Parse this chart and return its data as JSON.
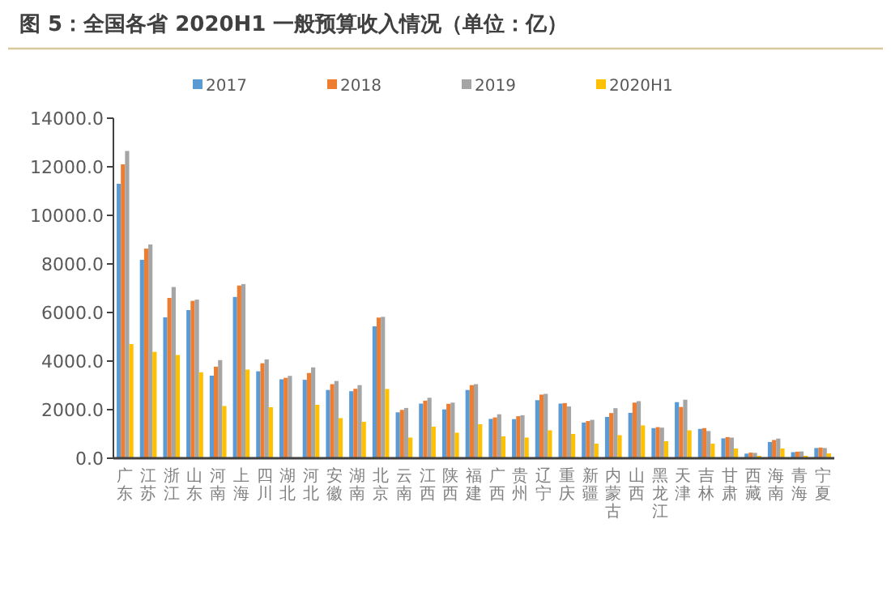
{
  "chart_data": {
    "type": "bar",
    "title": "图 5：全国各省 2020H1 一般预算收入情况（单位：亿）",
    "categories": [
      "广东",
      "江苏",
      "浙江",
      "山东",
      "河南",
      "上海",
      "四川",
      "湖北",
      "河北",
      "安徽",
      "湖南",
      "北京",
      "云南",
      "江西",
      "陕西",
      "福建",
      "广西",
      "贵州",
      "辽宁",
      "重庆",
      "新疆",
      "内蒙古",
      "山西",
      "黑龙江",
      "天津",
      "吉林",
      "甘肃",
      "西藏",
      "海南",
      "青海",
      "宁夏"
    ],
    "series": [
      {
        "name": "2017",
        "color": "#5b9bd5",
        "values": [
          11300,
          8170,
          5800,
          6100,
          3400,
          6640,
          3580,
          3250,
          3230,
          2810,
          2760,
          5430,
          1890,
          2250,
          2010,
          2810,
          1620,
          1610,
          2390,
          2250,
          1470,
          1700,
          1870,
          1240,
          2310,
          1210,
          820,
          190,
          670,
          250,
          420
        ]
      },
      {
        "name": "2018",
        "color": "#ed7d31",
        "values": [
          12100,
          8630,
          6600,
          6480,
          3770,
          7110,
          3910,
          3310,
          3510,
          3050,
          2860,
          5790,
          1990,
          2370,
          2240,
          3010,
          1680,
          1730,
          2620,
          2270,
          1530,
          1860,
          2290,
          1280,
          2110,
          1240,
          870,
          230,
          750,
          270,
          440
        ]
      },
      {
        "name": "2019",
        "color": "#a5a5a5",
        "values": [
          12650,
          8800,
          7050,
          6530,
          4040,
          7170,
          4070,
          3390,
          3740,
          3180,
          3010,
          5820,
          2070,
          2490,
          2290,
          3050,
          1810,
          1770,
          2650,
          2130,
          1580,
          2060,
          2350,
          1260,
          2410,
          1120,
          850,
          220,
          810,
          280,
          420
        ]
      },
      {
        "name": "2020H1",
        "color": "#ffc000",
        "values": [
          4700,
          4380,
          4250,
          3540,
          2150,
          3650,
          2100,
          null,
          2200,
          1650,
          1500,
          2850,
          850,
          1300,
          1050,
          1400,
          900,
          850,
          1150,
          1000,
          600,
          950,
          1350,
          700,
          1150,
          600,
          400,
          100,
          400,
          100,
          200
        ]
      }
    ],
    "ylim": [
      0,
      14000
    ],
    "yticks": [
      {
        "value": 0,
        "label": "0.0"
      },
      {
        "value": 2000,
        "label": "2000.0"
      },
      {
        "value": 4000,
        "label": "4000.0"
      },
      {
        "value": 6000,
        "label": "6000.0"
      },
      {
        "value": 8000,
        "label": "8000.0"
      },
      {
        "value": 10000,
        "label": "10000.0"
      },
      {
        "value": 12000,
        "label": "12000.0"
      },
      {
        "value": 14000,
        "label": "14000.0"
      }
    ],
    "legend": "top"
  }
}
